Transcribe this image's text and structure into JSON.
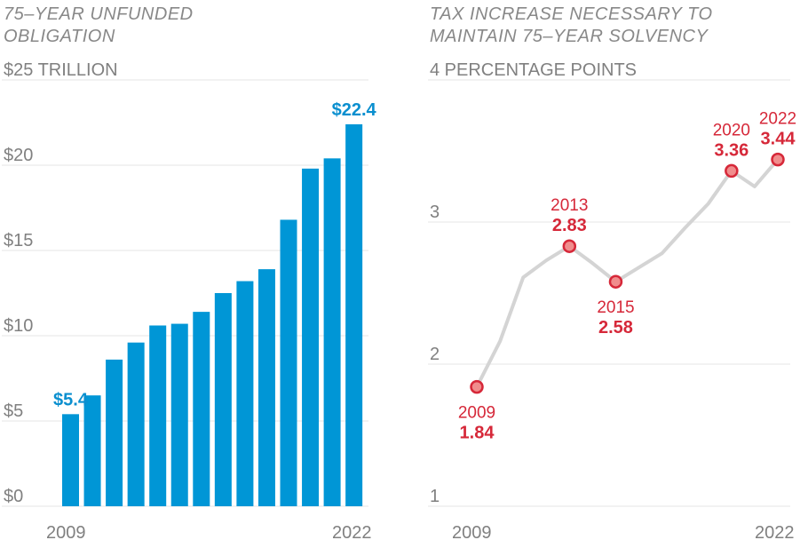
{
  "chart_data": [
    {
      "type": "bar",
      "title_lines": [
        "75–YEAR UNFUNDED",
        "OBLIGATION"
      ],
      "ytick_labels": [
        "$0",
        "$5",
        "$10",
        "$15",
        "$20",
        "$25 TRILLION"
      ],
      "yticks": [
        0,
        5,
        10,
        15,
        20,
        25
      ],
      "ylim": [
        0,
        25
      ],
      "x_labels": [
        "2009",
        "2022"
      ],
      "categories": [
        2009,
        2010,
        2011,
        2012,
        2013,
        2014,
        2015,
        2016,
        2017,
        2018,
        2019,
        2020,
        2021,
        2022
      ],
      "values": [
        5.4,
        6.5,
        8.6,
        9.6,
        10.6,
        10.7,
        11.4,
        12.5,
        13.2,
        13.9,
        16.8,
        19.8,
        20.4,
        22.4
      ],
      "annotations": [
        {
          "year": 2009,
          "label": "$5.4"
        },
        {
          "year": 2022,
          "label": "$22.4"
        }
      ],
      "color": "#0096d6"
    },
    {
      "type": "line",
      "title_lines": [
        "TAX INCREASE NECESSARY TO",
        "MAINTAIN 75–YEAR SOLVENCY"
      ],
      "ytick_labels": [
        "1",
        "2",
        "3",
        "4 PERCENTAGE POINTS"
      ],
      "yticks": [
        1,
        2,
        3,
        4
      ],
      "ylim": [
        1,
        4
      ],
      "x_labels": [
        "2009",
        "2022"
      ],
      "x": [
        2009,
        2010,
        2011,
        2012,
        2013,
        2014,
        2015,
        2016,
        2017,
        2018,
        2019,
        2020,
        2021,
        2022
      ],
      "values": [
        1.84,
        2.16,
        2.61,
        2.73,
        2.83,
        2.71,
        2.58,
        2.68,
        2.78,
        2.96,
        3.13,
        3.36,
        3.25,
        3.44
      ],
      "highlights": [
        {
          "year": 2009,
          "year_label": "2009",
          "value_label": "1.84"
        },
        {
          "year": 2013,
          "year_label": "2013",
          "value_label": "2.83"
        },
        {
          "year": 2015,
          "year_label": "2015",
          "value_label": "2.58"
        },
        {
          "year": 2020,
          "year_label": "2020",
          "value_label": "3.36"
        },
        {
          "year": 2022,
          "year_label": "2022",
          "value_label": "3.44"
        }
      ],
      "line_color": "#d4d4d4",
      "highlight_color": "#d62839"
    }
  ]
}
